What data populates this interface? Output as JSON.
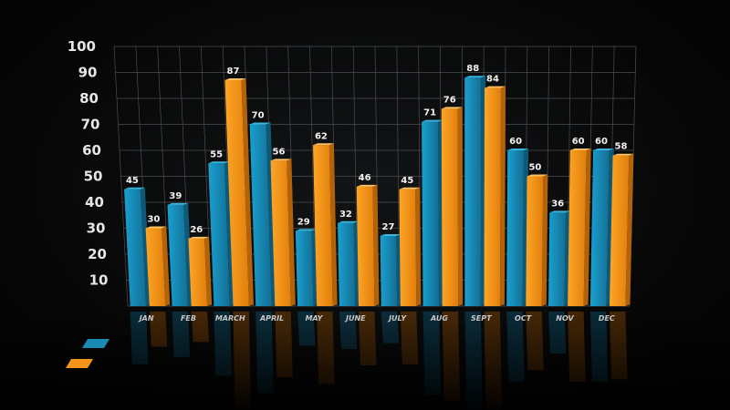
{
  "chart_data": {
    "type": "bar",
    "title": "",
    "xlabel": "",
    "ylabel": "",
    "ylim": [
      0,
      100
    ],
    "yticks": [
      10,
      20,
      30,
      40,
      50,
      60,
      70,
      80,
      90,
      100
    ],
    "categories": [
      "JAN",
      "FEB",
      "MARCH",
      "APRIL",
      "MAY",
      "JUNE",
      "JULY",
      "AUG",
      "SEPT",
      "OCT",
      "NOV",
      "DEC"
    ],
    "series": [
      {
        "color": "#1a8ab5",
        "values": [
          45,
          39,
          55,
          70,
          29,
          32,
          27,
          71,
          88,
          60,
          36,
          60
        ]
      },
      {
        "color": "#f5941a",
        "values": [
          30,
          26,
          87,
          56,
          62,
          46,
          45,
          76,
          84,
          50,
          60,
          58
        ]
      }
    ],
    "grid": true,
    "legend": "bottom-left",
    "data_labels": true
  }
}
